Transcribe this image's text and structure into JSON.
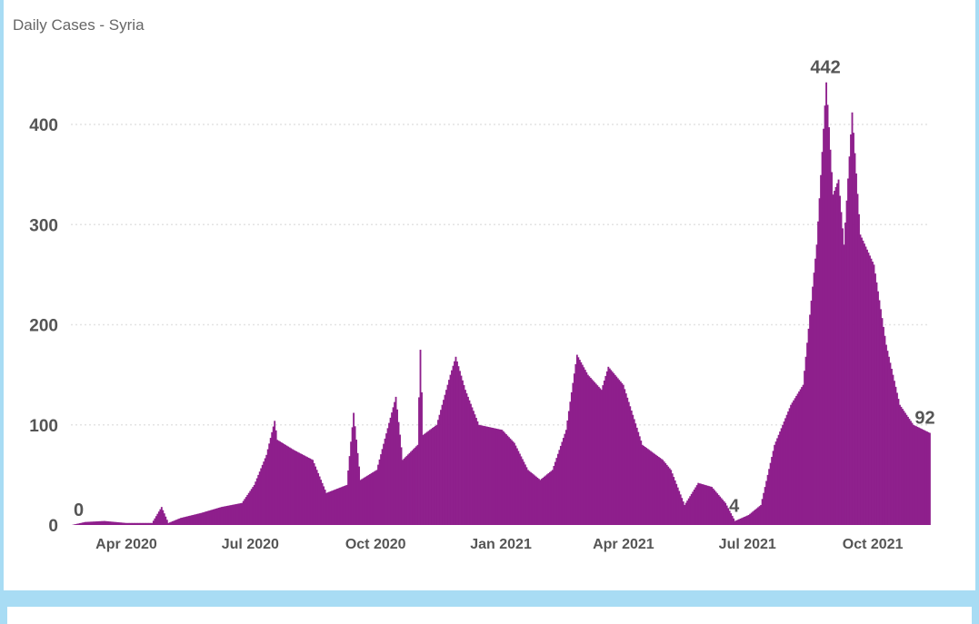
{
  "colors": {
    "bar": "#8e1f8c",
    "frame": "#a8dcf4",
    "grid": "#e3e3e3",
    "text": "#555555"
  },
  "chart_data": {
    "type": "bar",
    "title": "Daily Cases - Syria",
    "xlabel": "",
    "ylabel": "",
    "x_range": [
      "2020-03-22",
      "2021-12-12"
    ],
    "ylim": [
      0,
      442
    ],
    "yticks": [
      0,
      100,
      200,
      300,
      400
    ],
    "xticks": [
      {
        "date": "2020-04-01",
        "label": "Apr 2020"
      },
      {
        "date": "2020-07-01",
        "label": "Jul 2020"
      },
      {
        "date": "2020-10-01",
        "label": "Oct 2020"
      },
      {
        "date": "2021-01-01",
        "label": "Jan 2021"
      },
      {
        "date": "2021-04-01",
        "label": "Apr 2021"
      },
      {
        "date": "2021-07-01",
        "label": "Jul 2021"
      },
      {
        "date": "2021-10-01",
        "label": "Oct 2021"
      }
    ],
    "grid": true,
    "series": [
      {
        "points": [
          [
            "2020-03-22",
            0
          ],
          [
            "2020-04-01",
            3
          ],
          [
            "2020-04-15",
            4
          ],
          [
            "2020-05-01",
            2
          ],
          [
            "2020-05-20",
            2
          ],
          [
            "2020-05-27",
            18
          ],
          [
            "2020-06-01",
            2
          ],
          [
            "2020-06-10",
            7
          ],
          [
            "2020-06-25",
            12
          ],
          [
            "2020-07-10",
            18
          ],
          [
            "2020-07-25",
            22
          ],
          [
            "2020-08-03",
            40
          ],
          [
            "2020-08-12",
            70
          ],
          [
            "2020-08-18",
            104
          ],
          [
            "2020-08-20",
            85
          ],
          [
            "2020-09-01",
            75
          ],
          [
            "2020-09-15",
            65
          ],
          [
            "2020-09-25",
            32
          ],
          [
            "2020-10-10",
            40
          ],
          [
            "2020-10-15",
            112
          ],
          [
            "2020-10-20",
            45
          ],
          [
            "2020-11-01",
            55
          ],
          [
            "2020-11-15",
            128
          ],
          [
            "2020-11-20",
            65
          ],
          [
            "2020-12-01",
            80
          ],
          [
            "2020-12-03",
            175
          ],
          [
            "2020-12-05",
            90
          ],
          [
            "2020-12-15",
            100
          ],
          [
            "2020-12-25",
            150
          ],
          [
            "2020-12-29",
            168
          ],
          [
            "2021-01-05",
            135
          ],
          [
            "2021-01-15",
            100
          ],
          [
            "2021-02-01",
            95
          ],
          [
            "2021-02-10",
            82
          ],
          [
            "2021-02-20",
            55
          ],
          [
            "2021-03-01",
            45
          ],
          [
            "2021-03-10",
            55
          ],
          [
            "2021-03-20",
            95
          ],
          [
            "2021-03-28",
            170
          ],
          [
            "2021-04-05",
            150
          ],
          [
            "2021-04-15",
            135
          ],
          [
            "2021-04-20",
            158
          ],
          [
            "2021-05-01",
            140
          ],
          [
            "2021-05-15",
            80
          ],
          [
            "2021-05-30",
            65
          ],
          [
            "2021-06-05",
            55
          ],
          [
            "2021-06-15",
            20
          ],
          [
            "2021-06-25",
            42
          ],
          [
            "2021-07-05",
            38
          ],
          [
            "2021-07-15",
            22
          ],
          [
            "2021-07-22",
            4
          ],
          [
            "2021-08-01",
            10
          ],
          [
            "2021-08-10",
            20
          ],
          [
            "2021-08-20",
            80
          ],
          [
            "2021-09-01",
            120
          ],
          [
            "2021-09-10",
            140
          ],
          [
            "2021-09-20",
            280
          ],
          [
            "2021-09-27",
            442
          ],
          [
            "2021-10-02",
            330
          ],
          [
            "2021-10-06",
            345
          ],
          [
            "2021-10-10",
            280
          ],
          [
            "2021-10-16",
            412
          ],
          [
            "2021-10-22",
            290
          ],
          [
            "2021-11-01",
            260
          ],
          [
            "2021-11-10",
            180
          ],
          [
            "2021-11-20",
            120
          ],
          [
            "2021-11-30",
            100
          ],
          [
            "2021-12-12",
            92
          ]
        ]
      }
    ],
    "annotations": [
      {
        "date": "2020-03-24",
        "value": 0,
        "label": "0",
        "anchor": "start"
      },
      {
        "date": "2021-07-22",
        "value": 4,
        "label": "4",
        "anchor": "middle"
      },
      {
        "date": "2021-09-27",
        "value": 442,
        "label": "442",
        "anchor": "middle"
      },
      {
        "date": "2021-12-09",
        "value": 92,
        "label": "92",
        "anchor": "middle"
      }
    ]
  }
}
